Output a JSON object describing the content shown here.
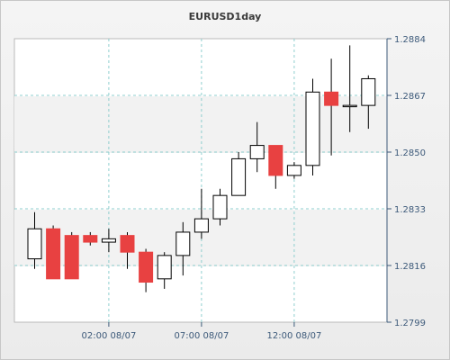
{
  "chart_data": {
    "type": "candlestick",
    "title": "EURUSD1day",
    "xlabel": "",
    "ylabel": "",
    "ylim": [
      1.2799,
      1.2884
    ],
    "y_ticks": [
      "1.2799",
      "1.2816",
      "1.2833",
      "1.2850",
      "1.2867",
      "1.2884"
    ],
    "x_ticks": [
      {
        "label": "02:00 08/07",
        "index": 4
      },
      {
        "label": "07:00 08/07",
        "index": 9
      },
      {
        "label": "12:00 08/07",
        "index": 14
      }
    ],
    "grid": true,
    "colors": {
      "up": "#ffffff",
      "down": "#e84141",
      "outline": "#000000",
      "grid": "#8fcfcf",
      "axis": "#3d5a7a"
    },
    "candles": [
      {
        "open": 1.2818,
        "high": 1.2832,
        "low": 1.2815,
        "close": 1.2827
      },
      {
        "open": 1.2827,
        "high": 1.2828,
        "low": 1.2812,
        "close": 1.2812
      },
      {
        "open": 1.2825,
        "high": 1.2826,
        "low": 1.2812,
        "close": 1.2812
      },
      {
        "open": 1.2825,
        "high": 1.2826,
        "low": 1.2822,
        "close": 1.2823
      },
      {
        "open": 1.2823,
        "high": 1.2827,
        "low": 1.282,
        "close": 1.2824
      },
      {
        "open": 1.2825,
        "high": 1.2826,
        "low": 1.2815,
        "close": 1.282
      },
      {
        "open": 1.282,
        "high": 1.2821,
        "low": 1.2808,
        "close": 1.2811
      },
      {
        "open": 1.2812,
        "high": 1.282,
        "low": 1.2809,
        "close": 1.2819
      },
      {
        "open": 1.2819,
        "high": 1.2829,
        "low": 1.2813,
        "close": 1.2826
      },
      {
        "open": 1.2826,
        "high": 1.2839,
        "low": 1.2824,
        "close": 1.283
      },
      {
        "open": 1.283,
        "high": 1.2839,
        "low": 1.2828,
        "close": 1.2837
      },
      {
        "open": 1.2837,
        "high": 1.285,
        "low": 1.2837,
        "close": 1.2848
      },
      {
        "open": 1.2848,
        "high": 1.2859,
        "low": 1.2844,
        "close": 1.2852
      },
      {
        "open": 1.2852,
        "high": 1.2852,
        "low": 1.2839,
        "close": 1.2843
      },
      {
        "open": 1.2843,
        "high": 1.2847,
        "low": 1.2842,
        "close": 1.2846
      },
      {
        "open": 1.2846,
        "high": 1.2872,
        "low": 1.2843,
        "close": 1.2868
      },
      {
        "open": 1.2868,
        "high": 1.2878,
        "low": 1.2849,
        "close": 1.2864
      },
      {
        "open": 1.2864,
        "high": 1.2882,
        "low": 1.2856,
        "close": 1.2864
      },
      {
        "open": 1.2864,
        "high": 1.2873,
        "low": 1.2857,
        "close": 1.2872
      }
    ]
  }
}
